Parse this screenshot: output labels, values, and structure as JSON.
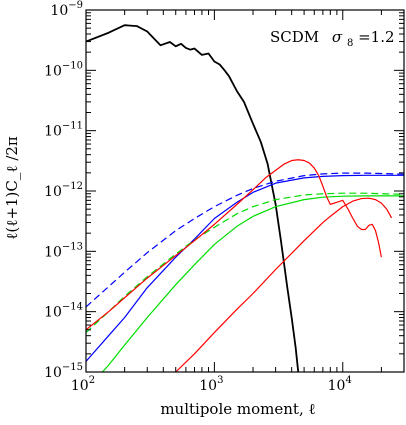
{
  "chart_data": {
    "type": "line",
    "xscale": "log",
    "yscale": "log",
    "xlim": [
      100,
      30000
    ],
    "ylim": [
      1e-15,
      1e-09
    ],
    "xlabel": "multipole moment, ℓ",
    "ylabel": "ℓ(ℓ+1)C_ℓ /2π",
    "x_ticks": [
      {
        "base": "10",
        "exp": "2",
        "value": 100
      },
      {
        "base": "10",
        "exp": "3",
        "value": 1000
      },
      {
        "base": "10",
        "exp": "4",
        "value": 10000
      }
    ],
    "y_ticks": [
      {
        "base": "10",
        "exp": "−9",
        "value": 1e-09
      },
      {
        "base": "10",
        "exp": "−10",
        "value": 1e-10
      },
      {
        "base": "10",
        "exp": "−11",
        "value": 1e-11
      },
      {
        "base": "10",
        "exp": "−12",
        "value": 1e-12
      },
      {
        "base": "10",
        "exp": "−13",
        "value": 1e-13
      },
      {
        "base": "10",
        "exp": "−14",
        "value": 1e-14
      },
      {
        "base": "10",
        "exp": "−15",
        "value": 1e-15
      }
    ],
    "annotation": {
      "main": "SCDM",
      "sigma": "σ",
      "sub": "8",
      "value": "=1.2"
    },
    "series": [
      {
        "color": "#000000",
        "dash": "solid",
        "x": [
          100,
          150,
          200,
          250,
          300,
          380,
          450,
          500,
          550,
          600,
          650,
          700,
          800,
          900,
          1000,
          1100,
          1200,
          1300,
          1500,
          1700,
          2000,
          2300,
          2600,
          3000,
          3300,
          3700,
          4000,
          4300,
          4500
        ],
        "y": [
          3e-10,
          4.2e-10,
          5.6e-10,
          5.4e-10,
          4.4e-10,
          2.6e-10,
          2.95e-10,
          2.5e-10,
          2.75e-10,
          2.35e-10,
          2.2e-10,
          2.3e-10,
          1.8e-10,
          1.9e-10,
          1.4e-10,
          1.25e-10,
          1e-10,
          8e-11,
          4.5e-11,
          3e-11,
          1.3e-11,
          6.5e-12,
          2.8e-12,
          6e-13,
          1.5e-13,
          2.5e-14,
          8e-15,
          2.5e-15,
          1e-15
        ]
      },
      {
        "color": "#0000ff",
        "dash": "solid",
        "x": [
          100,
          150,
          200,
          300,
          500,
          700,
          1000,
          1500,
          2000,
          3000,
          5000,
          7000,
          10000,
          15000,
          20000,
          30000
        ],
        "y": [
          1.5e-15,
          4e-15,
          8e-15,
          2.5e-14,
          8e-14,
          1.6e-13,
          3.5e-13,
          6.5e-13,
          9.5e-13,
          1.35e-12,
          1.65e-12,
          1.75e-12,
          1.8e-12,
          1.82e-12,
          1.82e-12,
          1.82e-12
        ]
      },
      {
        "color": "#0000ff",
        "dash": "dashed",
        "x": [
          100,
          150,
          200,
          300,
          500,
          700,
          1000,
          1500,
          2000,
          3000,
          5000,
          7000,
          10000,
          15000,
          20000,
          30000
        ],
        "y": [
          1.2e-14,
          2.6e-14,
          4.5e-14,
          9.5e-14,
          2.2e-13,
          3.5e-13,
          5.5e-13,
          8.5e-13,
          1.1e-12,
          1.45e-12,
          1.8e-12,
          1.92e-12,
          1.98e-12,
          1.98e-12,
          1.95e-12,
          1.9e-12
        ]
      },
      {
        "color": "#00dd00",
        "dash": "solid",
        "x": [
          100,
          150,
          200,
          300,
          500,
          700,
          1000,
          1500,
          2000,
          3000,
          5000,
          7000,
          10000,
          15000,
          20000,
          30000
        ],
        "y": [
          5e-16,
          1.3e-15,
          2.8e-15,
          8e-15,
          2.8e-14,
          6e-14,
          1.3e-13,
          2.6e-13,
          3.8e-13,
          5.5e-13,
          7.2e-13,
          7.9e-13,
          8.2e-13,
          8.3e-13,
          8.3e-13,
          8.3e-13
        ]
      },
      {
        "color": "#00dd00",
        "dash": "dashed",
        "x": [
          100,
          150,
          200,
          300,
          500,
          700,
          1000,
          1500,
          2000,
          3000,
          5000,
          7000,
          10000,
          15000,
          20000,
          30000
        ],
        "y": [
          4.5e-15,
          1e-14,
          1.8e-14,
          3.8e-14,
          9e-14,
          1.55e-13,
          2.5e-13,
          4.2e-13,
          5.5e-13,
          7.2e-13,
          8.6e-13,
          9e-13,
          9.2e-13,
          9.2e-13,
          9e-13,
          8.8e-13
        ]
      },
      {
        "color": "#ff0000",
        "dash": "solid",
        "x": [
          100,
          150,
          200,
          300,
          500,
          700,
          1000,
          1500,
          2000,
          2500,
          3000,
          3500,
          4000,
          4500,
          5000,
          5500,
          6000,
          6500,
          7000,
          7500,
          8000,
          9000,
          10000,
          11000,
          12000,
          13000,
          14000,
          15000,
          16000,
          17000,
          18000,
          19000,
          20000
        ],
        "y": [
          5e-15,
          1e-14,
          1.7e-14,
          3.6e-14,
          8.5e-14,
          1.5e-13,
          2.8e-13,
          6e-13,
          1.05e-12,
          1.65e-12,
          2.2e-12,
          2.8e-12,
          3.2e-12,
          3.3e-12,
          3.2e-12,
          2.9e-12,
          2.4e-12,
          1.8e-12,
          1.2e-12,
          8e-13,
          6e-13,
          6.5e-13,
          7e-13,
          5e-13,
          3.5e-13,
          2.6e-13,
          2.3e-13,
          2.3e-13,
          2.7e-13,
          2.8e-13,
          2.2e-13,
          1.4e-13,
          8e-14
        ]
      },
      {
        "color": "#ff0000",
        "dash": "solid",
        "x": [
          500,
          700,
          1000,
          1500,
          2000,
          3000,
          5000,
          7000,
          8000,
          10000,
          12000,
          14000,
          16000,
          18000,
          20000,
          22000,
          24000
        ],
        "y": [
          1e-15,
          2e-15,
          4.5e-15,
          1.1e-14,
          2e-14,
          5e-14,
          1.5e-13,
          3e-13,
          3.8e-13,
          5.5e-13,
          6.8e-13,
          7.5e-13,
          7.6e-13,
          7.2e-13,
          6.3e-13,
          5e-13,
          3.6e-13
        ]
      }
    ]
  }
}
